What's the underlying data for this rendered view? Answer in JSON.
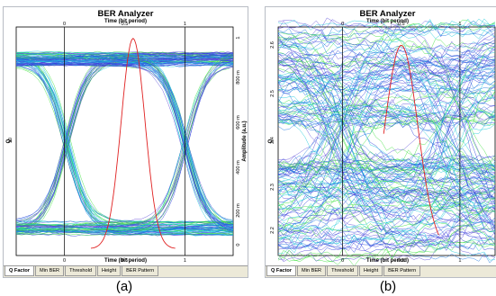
{
  "panels": [
    {
      "id": "a",
      "title": "BER Analyzer",
      "subtitle": "Time (bit period)",
      "xlabel": "Time (bit period)",
      "left_axis_label": "Q",
      "right_axis_label": "Amplitude (a.u.)",
      "top_ticks": [
        "0",
        "0.5",
        "1"
      ],
      "bottom_ticks": [
        "0",
        "0.5",
        "1"
      ],
      "left_ticks": [
        "10"
      ],
      "right_ticks": [
        "1",
        "800 m",
        "600 m",
        "400 m",
        "200 m",
        "0"
      ],
      "tabs": [
        "Q Factor",
        "Min BER",
        "Threshold",
        "Height",
        "BER Pattern"
      ],
      "active_tab": "Q Factor",
      "caption": "(a)"
    },
    {
      "id": "b",
      "title": "BER Analyzer",
      "subtitle": "Time (bit period)",
      "xlabel": "Time (bit period)",
      "left_axis_label": "Q",
      "right_axis_label": "",
      "top_ticks": [
        "0",
        "0.5",
        "1"
      ],
      "bottom_ticks": [
        "0",
        "0.5",
        "1"
      ],
      "left_ticks": [
        "2.6",
        "2.5",
        "2.4",
        "2.3",
        "2.2"
      ],
      "right_ticks": [
        "800 m",
        "700 m",
        "600 m",
        "500 m",
        "400 m",
        "300 m",
        "200 m",
        "100 m"
      ],
      "tabs": [
        "Q Factor",
        "Min BER",
        "Threshold",
        "Height",
        "BER Pattern"
      ],
      "active_tab": "Q Factor",
      "caption": "(b)"
    }
  ],
  "colors": {
    "trace_blue": "#2a3cdc",
    "trace_cyan": "#16c8d8",
    "trace_green": "#3ce03c",
    "q_curve": "#e02020",
    "axis": "#000000"
  }
}
